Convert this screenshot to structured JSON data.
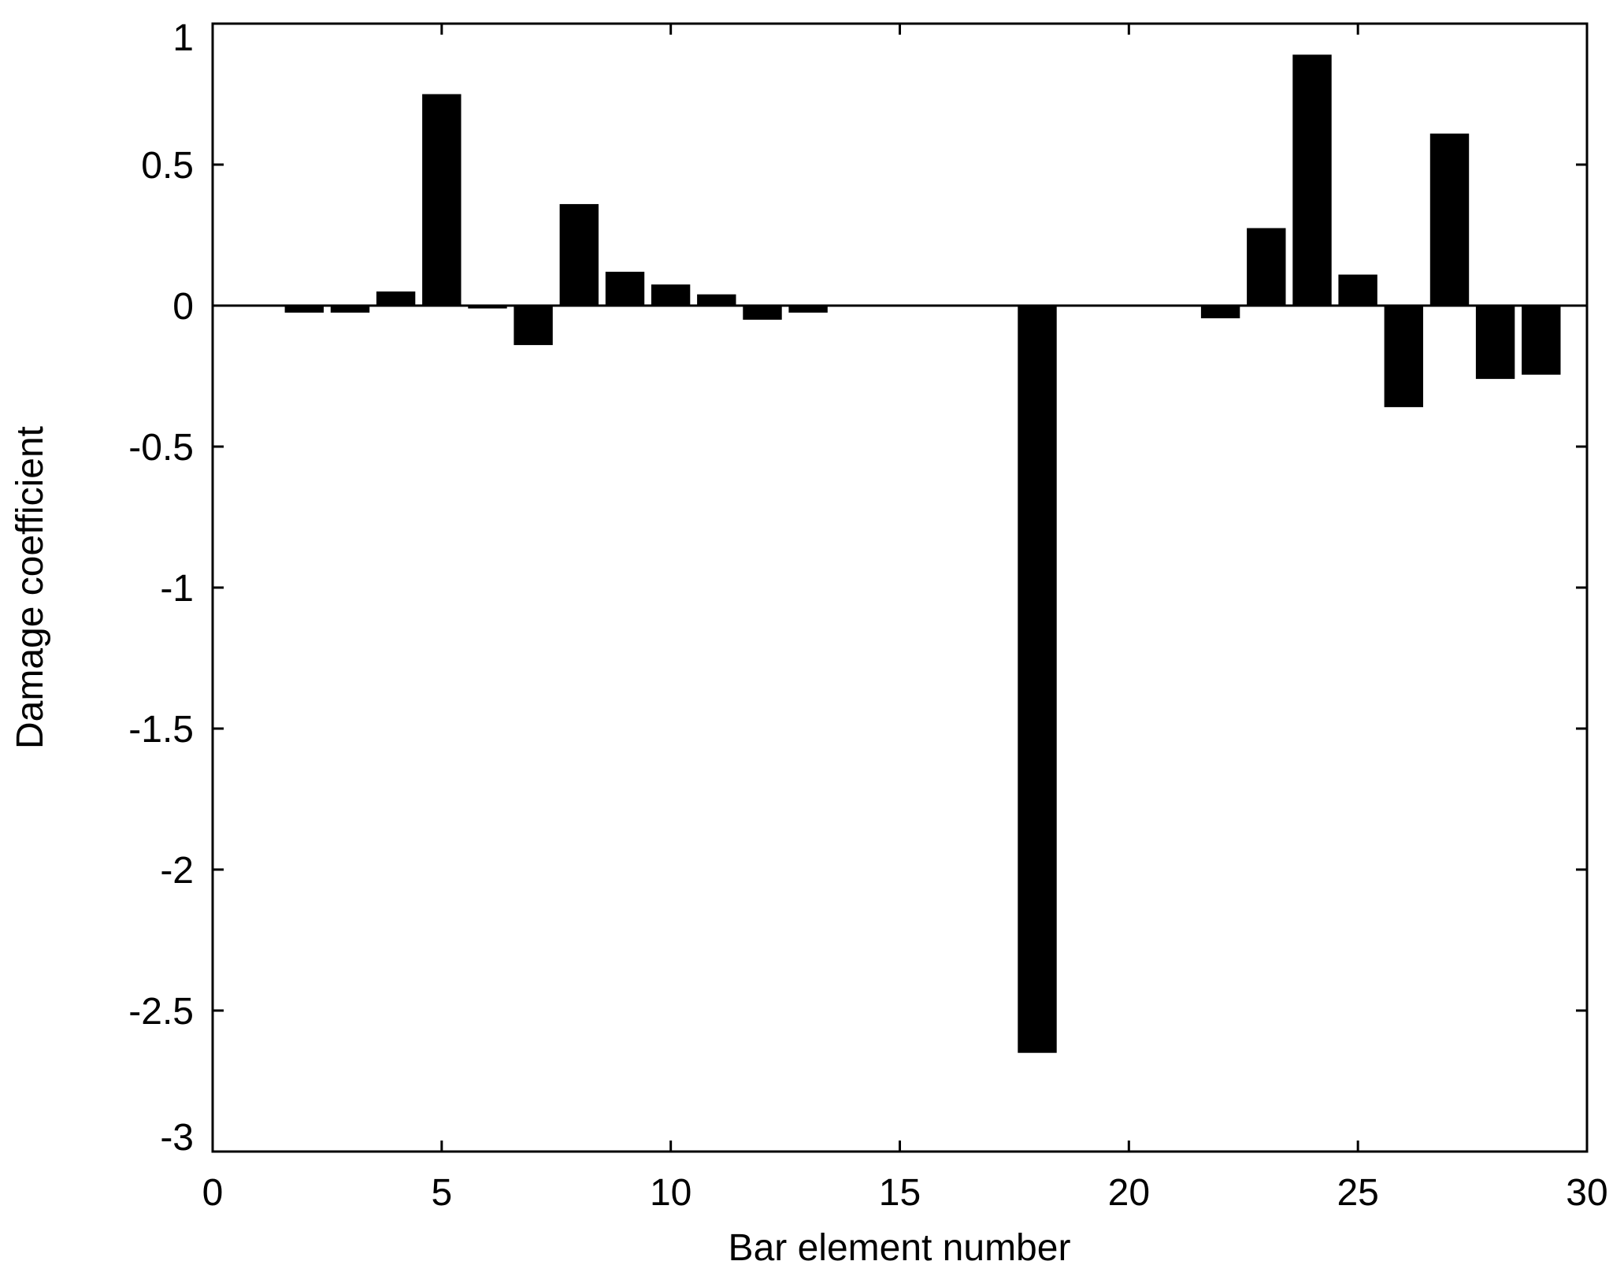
{
  "chart_data": {
    "type": "bar",
    "title": "",
    "xlabel": "Bar element number",
    "ylabel": "Damage coefficient",
    "xlim": [
      0,
      30
    ],
    "ylim": [
      -3,
      1
    ],
    "xticks": [
      0,
      5,
      10,
      15,
      20,
      25,
      30
    ],
    "xtick_labels": [
      "0",
      "5",
      "10",
      "15",
      "20",
      "25",
      "30"
    ],
    "yticks": [
      1,
      0.5,
      0,
      -0.5,
      -1,
      -1.5,
      -2,
      -2.5,
      -3
    ],
    "ytick_labels": [
      "1",
      "0.5",
      "0",
      "-0.5",
      "-1",
      "-1.5",
      "-2",
      "-2.5",
      "-3"
    ],
    "grid": false,
    "bar_color": "#000000",
    "x": [
      1,
      2,
      3,
      4,
      5,
      6,
      7,
      8,
      9,
      10,
      11,
      12,
      13,
      14,
      15,
      16,
      17,
      18,
      19,
      20,
      21,
      22,
      23,
      24,
      25,
      26,
      27,
      28,
      29
    ],
    "values": [
      0,
      -0.025,
      -0.025,
      0.05,
      0.75,
      -0.01,
      -0.14,
      0.36,
      0.12,
      0.075,
      0.04,
      -0.05,
      -0.025,
      0,
      0,
      0,
      0,
      -2.65,
      0,
      0,
      0,
      -0.045,
      0.275,
      0.89,
      0.11,
      -0.36,
      0.61,
      -0.26,
      -0.245
    ]
  }
}
